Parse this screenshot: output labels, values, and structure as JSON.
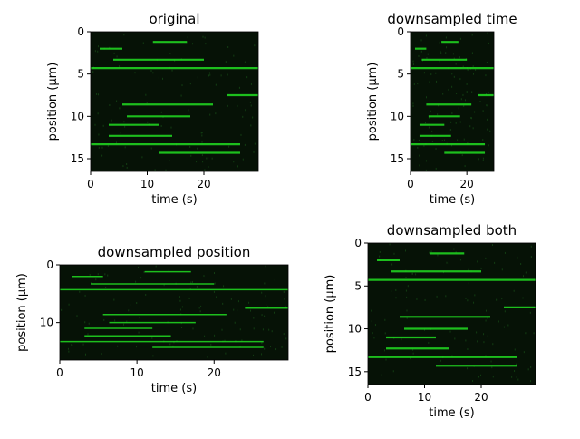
{
  "chart_data": [
    {
      "type": "image",
      "title": "original",
      "xlabel": "time (s)",
      "ylabel": "position (μm)",
      "xlim": [
        0,
        29.6
      ],
      "ylim": [
        16.5,
        0
      ],
      "xticks": [
        0,
        10,
        20
      ],
      "yticks": [
        0,
        5,
        10,
        15
      ],
      "color": "#22dd22",
      "background": "#061206",
      "tracks": {
        "position": [
          1.2,
          2,
          3.3,
          4.3,
          7.5,
          8.6,
          10,
          11,
          12.3,
          13.3,
          14.3
        ],
        "start": [
          11,
          1.6,
          4,
          0,
          24,
          5.6,
          6.4,
          3.2,
          3.2,
          0,
          12
        ],
        "end": [
          17,
          5.6,
          20,
          29.6,
          29.6,
          21.6,
          17.6,
          12,
          14.4,
          26.4,
          26.4
        ]
      }
    },
    {
      "type": "image",
      "title": "downsampled time",
      "xlabel": "time (s)",
      "ylabel": "position (μm)",
      "xlim": [
        0,
        29.6
      ],
      "ylim": [
        16.5,
        0
      ],
      "xticks": [
        0,
        20
      ],
      "yticks": [
        0,
        5,
        10,
        15
      ],
      "color": "#22dd22",
      "background": "#061206",
      "tracks": {
        "position": [
          1.2,
          2,
          3.3,
          4.3,
          7.5,
          8.6,
          10,
          11,
          12.3,
          13.3,
          14.3
        ],
        "start": [
          11,
          1.6,
          4,
          0,
          24,
          5.6,
          6.4,
          3.2,
          3.2,
          0,
          12
        ],
        "end": [
          17,
          5.6,
          20,
          29.6,
          29.6,
          21.6,
          17.6,
          12,
          14.4,
          26.4,
          26.4
        ]
      }
    },
    {
      "type": "image",
      "title": "downsampled position",
      "xlabel": "time (s)",
      "ylabel": "position (μm)",
      "xlim": [
        0,
        29.6
      ],
      "ylim": [
        16.5,
        0
      ],
      "xticks": [
        0,
        10,
        20
      ],
      "yticks": [
        0,
        10
      ],
      "color": "#22dd22",
      "background": "#061206",
      "tracks": {
        "position": [
          1.2,
          2,
          3.3,
          4.3,
          7.5,
          8.6,
          10,
          11,
          12.3,
          13.3,
          14.3
        ],
        "start": [
          11,
          1.6,
          4,
          0,
          24,
          5.6,
          6.4,
          3.2,
          3.2,
          0,
          12
        ],
        "end": [
          17,
          5.6,
          20,
          29.6,
          29.6,
          21.6,
          17.6,
          12,
          14.4,
          26.4,
          26.4
        ]
      }
    },
    {
      "type": "image",
      "title": "downsampled both",
      "xlabel": "time (s)",
      "ylabel": "position (μm)",
      "xlim": [
        0,
        29.6
      ],
      "ylim": [
        16.5,
        0
      ],
      "xticks": [
        0,
        10,
        20
      ],
      "yticks": [
        0,
        5,
        10,
        15
      ],
      "color": "#22dd22",
      "background": "#061206",
      "tracks": {
        "position": [
          1.2,
          2,
          3.3,
          4.3,
          7.5,
          8.6,
          10,
          11,
          12.3,
          13.3,
          14.3
        ],
        "start": [
          11,
          1.6,
          4,
          0,
          24,
          5.6,
          6.4,
          3.2,
          3.2,
          0,
          12
        ],
        "end": [
          17,
          5.6,
          20,
          29.6,
          29.6,
          21.6,
          17.6,
          12,
          14.4,
          26.4,
          26.4
        ]
      }
    }
  ]
}
